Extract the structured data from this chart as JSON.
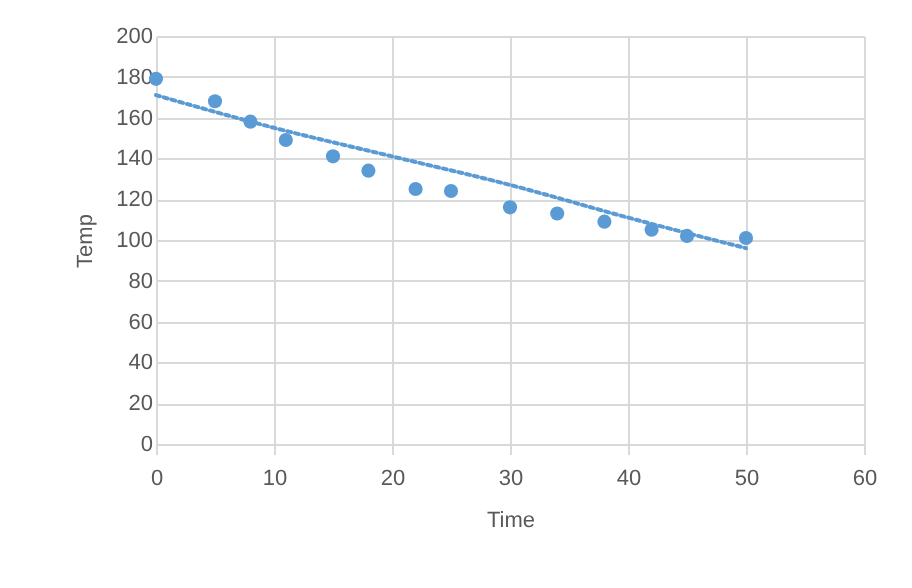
{
  "chart_data": {
    "type": "scatter",
    "xlabel": "Time",
    "ylabel": "Temp",
    "xlim": [
      0,
      60
    ],
    "xticks": [
      0,
      10,
      20,
      30,
      40,
      50,
      60
    ],
    "ylim": [
      0,
      200
    ],
    "yticks": [
      0,
      20,
      40,
      60,
      80,
      100,
      120,
      140,
      160,
      180,
      200
    ],
    "grid": true,
    "series": [
      {
        "type": "scatter",
        "color": "#5b9bd5",
        "marker": "circle",
        "x": [
          0,
          5,
          8,
          11,
          15,
          18,
          22,
          25,
          30,
          34,
          38,
          42,
          45,
          50
        ],
        "values": [
          179,
          168,
          158,
          149,
          141,
          134,
          125,
          124,
          116,
          113,
          109,
          105,
          102,
          101
        ]
      },
      {
        "type": "line",
        "color": "#5b9bd5",
        "line_style": "dotted",
        "x": [
          0,
          10,
          20,
          30,
          40,
          50
        ],
        "values": [
          171,
          155,
          141,
          127,
          111,
          96
        ]
      }
    ]
  }
}
